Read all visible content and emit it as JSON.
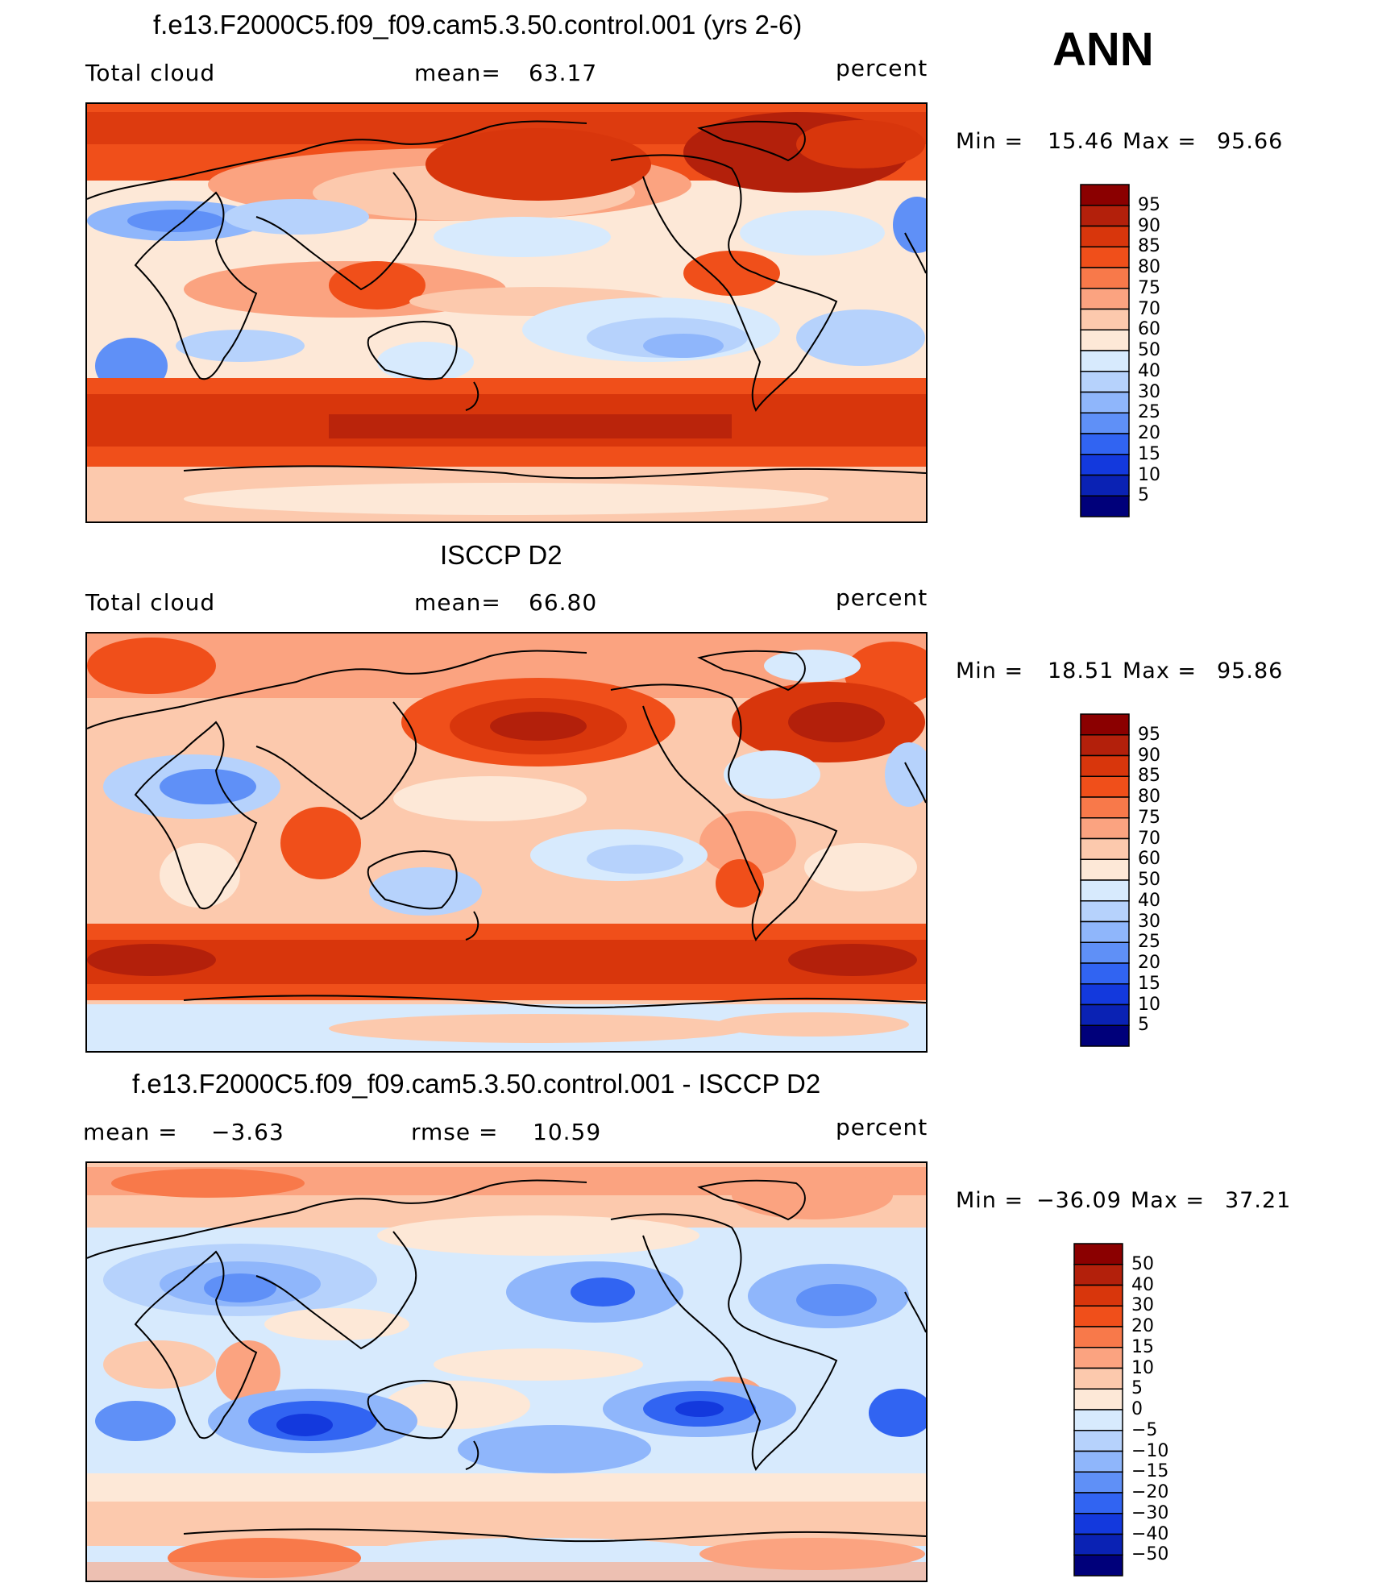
{
  "season": "ANN",
  "panels": [
    {
      "title": "f.e13.F2000C5.f09_f09.cam5.3.50.control.001 (yrs 2-6)",
      "left_label": "Total cloud",
      "stat_label": "mean=",
      "stat_value": "63.17",
      "units": "percent",
      "min_label": "Min =",
      "min_value": "15.46",
      "max_label": "Max =",
      "max_value": "95.66",
      "colorbar": {
        "levels": [
          "95",
          "90",
          "85",
          "80",
          "75",
          "70",
          "60",
          "50",
          "40",
          "30",
          "25",
          "20",
          "15",
          "10",
          "5"
        ],
        "colors": [
          "#8b0000",
          "#b3200b",
          "#d8360c",
          "#f04f1a",
          "#f8794a",
          "#fba380",
          "#fcc9ad",
          "#fde8d7",
          "#d7eafd",
          "#b6d2fc",
          "#8fb6fb",
          "#5f90f7",
          "#3164f2",
          "#1339dd",
          "#0a22b4",
          "#00007a"
        ]
      }
    },
    {
      "title": "ISCCP D2",
      "left_label": "Total cloud",
      "stat_label": "mean=",
      "stat_value": "66.80",
      "units": "percent",
      "min_label": "Min =",
      "min_value": "18.51",
      "max_label": "Max =",
      "max_value": "95.86",
      "colorbar": {
        "levels": [
          "95",
          "90",
          "85",
          "80",
          "75",
          "70",
          "60",
          "50",
          "40",
          "30",
          "25",
          "20",
          "15",
          "10",
          "5"
        ],
        "colors": [
          "#8b0000",
          "#b3200b",
          "#d8360c",
          "#f04f1a",
          "#f8794a",
          "#fba380",
          "#fcc9ad",
          "#fde8d7",
          "#d7eafd",
          "#b6d2fc",
          "#8fb6fb",
          "#5f90f7",
          "#3164f2",
          "#1339dd",
          "#0a22b4",
          "#00007a"
        ]
      }
    },
    {
      "title": "f.e13.F2000C5.f09_f09.cam5.3.50.control.001 - ISCCP D2",
      "left_label": "mean =",
      "left_value": "−3.63",
      "stat_label": "rmse =",
      "stat_value": "10.59",
      "units": "percent",
      "min_label": "Min =",
      "min_value": "−36.09",
      "max_label": "Max =",
      "max_value": "37.21",
      "colorbar": {
        "levels": [
          "50",
          "40",
          "30",
          "20",
          "15",
          "10",
          "5",
          "0",
          "−5",
          "−10",
          "−15",
          "−20",
          "−30",
          "−40",
          "−50"
        ],
        "colors": [
          "#8b0000",
          "#b3200b",
          "#d8360c",
          "#f04f1a",
          "#f8794a",
          "#fba380",
          "#fcc9ad",
          "#fde8d7",
          "#d7eafd",
          "#b6d2fc",
          "#8fb6fb",
          "#5f90f7",
          "#3164f2",
          "#1339dd",
          "#0a22b4",
          "#00007a"
        ]
      }
    }
  ]
}
